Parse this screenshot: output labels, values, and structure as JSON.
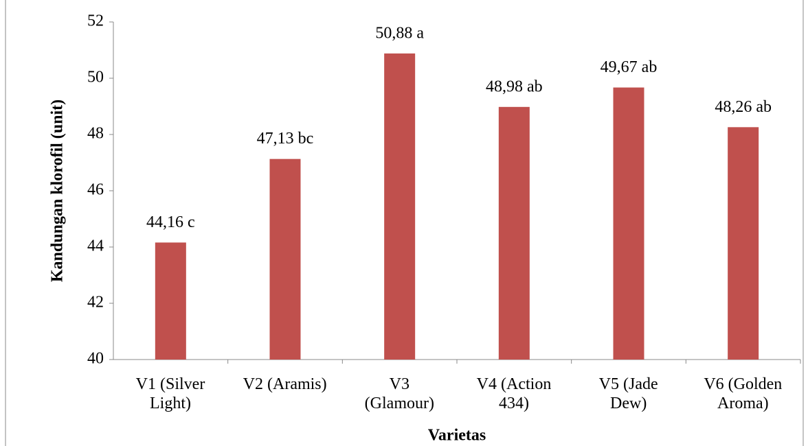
{
  "chart_data": {
    "type": "bar",
    "x_label": "Varietas",
    "y_label": "Kandungan klorofil (unit)",
    "categories": [
      "V1 (Silver\nLight)",
      "V2 (Aramis)",
      "V3\n(Glamour)",
      "V4 (Action\n434)",
      "V5 (Jade\nDew)",
      "V6 (Golden\nAroma)"
    ],
    "values": [
      44.16,
      47.13,
      50.88,
      48.98,
      49.67,
      48.26
    ],
    "value_labels": [
      "44,16 c",
      "47,13 bc",
      "50,88 a",
      "48,98 ab",
      "49,67 ab",
      "48,26 ab"
    ],
    "color": "#c0504d",
    "ylim": [
      40,
      52
    ],
    "yticks": [
      40,
      42,
      44,
      46,
      48,
      50,
      52
    ],
    "grid": false
  }
}
